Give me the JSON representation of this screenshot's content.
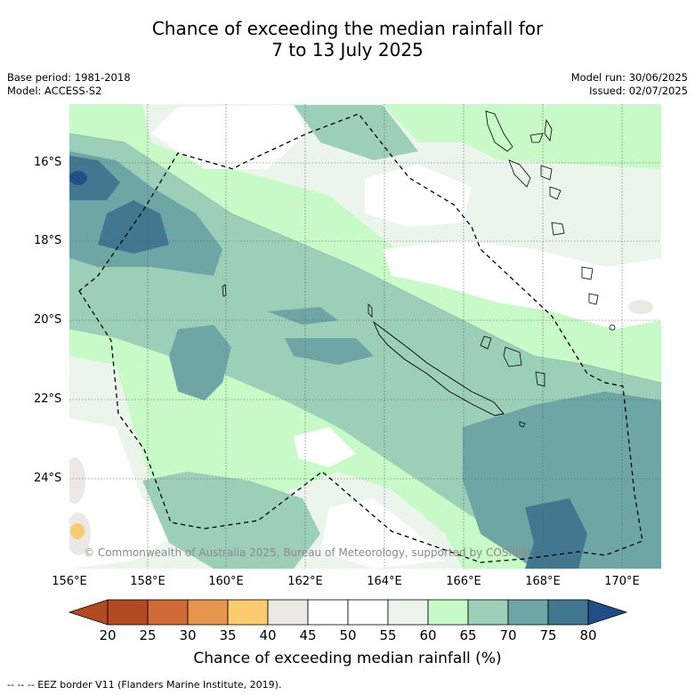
{
  "header": {
    "title_line1": "Chance of exceeding the median rainfall for",
    "title_line2": "7 to 13 July 2025"
  },
  "meta": {
    "base_period": "Base period: 1981-2018",
    "model": "Model: ACCESS-S2",
    "model_run": "Model run: 30/06/2025",
    "issued": "Issued: 02/07/2025"
  },
  "map": {
    "lat_labels": [
      "16°S",
      "18°S",
      "20°S",
      "22°S",
      "24°S"
    ],
    "lon_labels": [
      "156°E",
      "158°E",
      "160°E",
      "162°E",
      "164°E",
      "166°E",
      "168°E",
      "170°E"
    ],
    "copyright": "© Commonwealth of Australia 2025, Bureau of Meteorology, supported by COSPPac",
    "colors": {
      "c20_25": "#b34a22",
      "c25_30": "#cf6a35",
      "c30_35": "#e3964c",
      "c35_40": "#fbcc6e",
      "c40_45": "#ece8e4",
      "c45_50": "#ffffff",
      "c50_55": "#ffffff",
      "c55_60": "#ecf5ec",
      "c60_65": "#c8fac8",
      "c65_70": "#9ccfb7",
      "c70_75": "#6ea6a6",
      "c75_80": "#41778f",
      "c80_plus": "#1f4f86"
    }
  },
  "colorbar": {
    "ticks": [
      "20",
      "25",
      "30",
      "35",
      "40",
      "45",
      "50",
      "55",
      "60",
      "65",
      "70",
      "75",
      "80"
    ],
    "label": "Chance of exceeding median rainfall (%)"
  },
  "footer": {
    "eez_note": "--  --  -- EEZ border V11 (Flanders Marine Institute, 2019)."
  }
}
